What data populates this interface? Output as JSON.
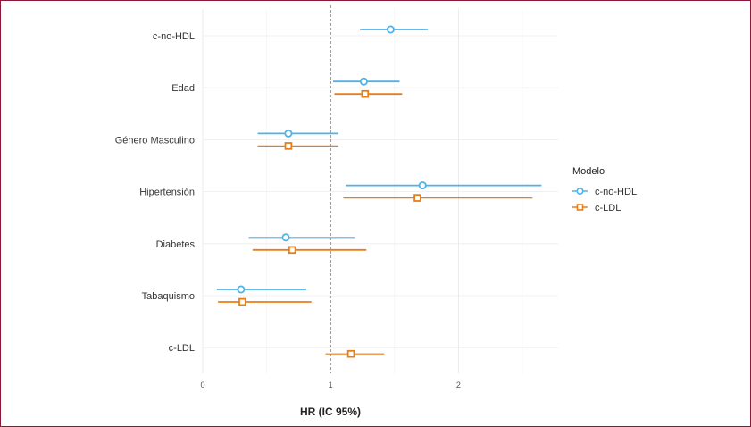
{
  "chart_data": {
    "type": "forest",
    "title": "",
    "xlabel": "HR (IC 95%)",
    "ylabel": "",
    "xlim": [
      0,
      2.78
    ],
    "x_ticks": [
      0,
      1,
      2
    ],
    "reference_line": 1,
    "grid": true,
    "legend_position": "right",
    "legend_title": "Modelo",
    "categories": [
      "c-no-HDL",
      "Edad",
      "Género Masculino",
      "Hipertensión",
      "Diabetes",
      "Tabaquismo",
      "c-LDL"
    ],
    "series": [
      {
        "name": "c-no-HDL",
        "color": "#4fb3e8",
        "marker": "circle",
        "points": [
          {
            "category": "c-no-HDL",
            "hr": 1.47,
            "lo": 1.23,
            "hi": 1.76
          },
          {
            "category": "Edad",
            "hr": 1.26,
            "lo": 1.02,
            "hi": 1.54
          },
          {
            "category": "Género Masculino",
            "hr": 0.67,
            "lo": 0.43,
            "hi": 1.06
          },
          {
            "category": "Hipertensión",
            "hr": 1.72,
            "lo": 1.12,
            "hi": 2.65
          },
          {
            "category": "Diabetes",
            "hr": 0.65,
            "lo": 0.36,
            "hi": 1.19
          },
          {
            "category": "Tabaquismo",
            "hr": 0.3,
            "lo": 0.11,
            "hi": 0.81
          }
        ]
      },
      {
        "name": "c-LDL",
        "color": "#e87e1a",
        "marker": "square",
        "points": [
          {
            "category": "Edad",
            "hr": 1.27,
            "lo": 1.03,
            "hi": 1.56
          },
          {
            "category": "Género Masculino",
            "hr": 0.67,
            "lo": 0.43,
            "hi": 1.06
          },
          {
            "category": "Hipertensión",
            "hr": 1.68,
            "lo": 1.1,
            "hi": 2.58
          },
          {
            "category": "Diabetes",
            "hr": 0.7,
            "lo": 0.39,
            "hi": 1.28
          },
          {
            "category": "Tabaquismo",
            "hr": 0.31,
            "lo": 0.12,
            "hi": 0.85
          },
          {
            "category": "c-LDL",
            "hr": 1.16,
            "lo": 0.96,
            "hi": 1.42
          }
        ]
      }
    ]
  }
}
